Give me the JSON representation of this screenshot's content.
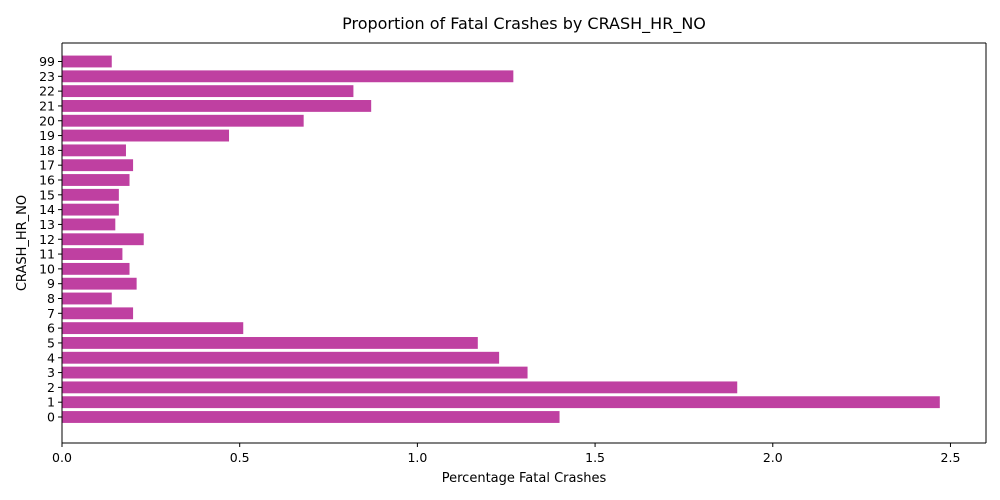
{
  "chart_data": {
    "type": "bar",
    "orientation": "horizontal",
    "title": "Proportion of Fatal Crashes by CRASH_HR_NO",
    "xlabel": "Percentage Fatal Crashes",
    "ylabel": "CRASH_HR_NO",
    "categories": [
      "0",
      "1",
      "2",
      "3",
      "4",
      "5",
      "6",
      "7",
      "8",
      "9",
      "10",
      "11",
      "12",
      "13",
      "14",
      "15",
      "16",
      "17",
      "18",
      "19",
      "20",
      "21",
      "22",
      "23",
      "99"
    ],
    "values": [
      1.4,
      2.47,
      1.9,
      1.31,
      1.23,
      1.17,
      0.51,
      0.2,
      0.14,
      0.21,
      0.19,
      0.17,
      0.23,
      0.15,
      0.16,
      0.16,
      0.19,
      0.2,
      0.18,
      0.47,
      0.68,
      0.87,
      0.82,
      1.27,
      0.14
    ],
    "xlim": [
      0,
      2.6
    ],
    "xticks": [
      "0.0",
      "0.5",
      "1.0",
      "1.5",
      "2.0",
      "2.5"
    ],
    "xtick_values": [
      0,
      0.5,
      1.0,
      1.5,
      2.0,
      2.5
    ],
    "bar_color": "#bf40a1",
    "grid": false,
    "legend": "none"
  }
}
